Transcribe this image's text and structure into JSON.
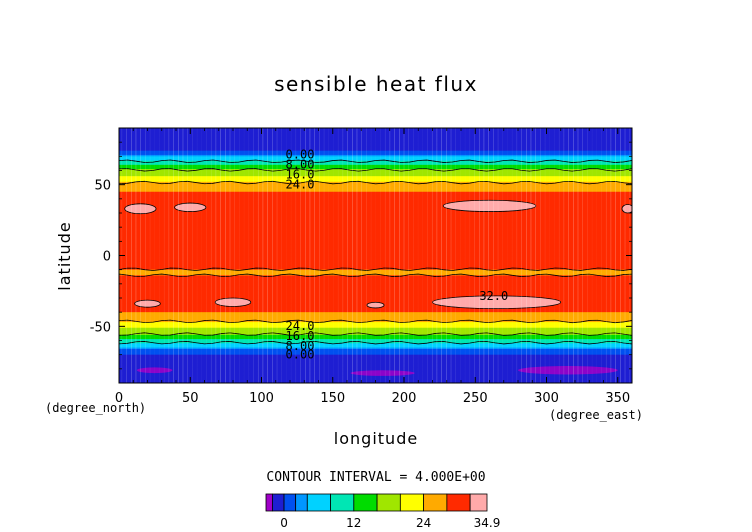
{
  "chart_data": {
    "type": "heatmap",
    "title": "sensible heat flux",
    "xlabel": "longitude",
    "ylabel": "latitude",
    "x_unit": "(degree_east)",
    "y_unit": "(degree_north)",
    "xlim": [
      0,
      360
    ],
    "ylim": [
      -90,
      90
    ],
    "x_ticks": [
      0,
      50,
      100,
      150,
      200,
      250,
      300,
      350
    ],
    "y_ticks": [
      -50,
      0,
      50
    ],
    "contour_interval_text": "CONTOUR INTERVAL = 4.000E+00",
    "contour_labels": [
      {
        "text": "0.00",
        "lon": 127,
        "lat": 72
      },
      {
        "text": "8.00",
        "lon": 127,
        "lat": 65
      },
      {
        "text": "16.0",
        "lon": 127,
        "lat": 58
      },
      {
        "text": "24.0",
        "lon": 127,
        "lat": 51
      },
      {
        "text": "24.0",
        "lon": 127,
        "lat": -49
      },
      {
        "text": "16.0",
        "lon": 127,
        "lat": -56
      },
      {
        "text": "8.00",
        "lon": 127,
        "lat": -63
      },
      {
        "text": "0.00",
        "lon": 127,
        "lat": -69
      },
      {
        "text": "32.0",
        "lon": 263,
        "lat": -28
      }
    ],
    "lat_profile": [
      {
        "lat": 90,
        "value": -2
      },
      {
        "lat": 80,
        "value": -1
      },
      {
        "lat": 74,
        "value": 0
      },
      {
        "lat": 71,
        "value": 2
      },
      {
        "lat": 68,
        "value": 6
      },
      {
        "lat": 65,
        "value": 10
      },
      {
        "lat": 62,
        "value": 14
      },
      {
        "lat": 59,
        "value": 18
      },
      {
        "lat": 56,
        "value": 20
      },
      {
        "lat": 53,
        "value": 22
      },
      {
        "lat": 50,
        "value": 26
      },
      {
        "lat": 45,
        "value": 28
      },
      {
        "lat": 40,
        "value": 30
      },
      {
        "lat": 35,
        "value": 31
      },
      {
        "lat": 30,
        "value": 30
      },
      {
        "lat": 25,
        "value": 30
      },
      {
        "lat": 20,
        "value": 28
      },
      {
        "lat": 15,
        "value": 30
      },
      {
        "lat": 5,
        "value": 30
      },
      {
        "lat": 0,
        "value": 30
      },
      {
        "lat": -5,
        "value": 30
      },
      {
        "lat": -12,
        "value": 27
      },
      {
        "lat": -18,
        "value": 30
      },
      {
        "lat": -25,
        "value": 30
      },
      {
        "lat": -30,
        "value": 31
      },
      {
        "lat": -36,
        "value": 30
      },
      {
        "lat": -40,
        "value": 28
      },
      {
        "lat": -45,
        "value": 26
      },
      {
        "lat": -48,
        "value": 22
      },
      {
        "lat": -51,
        "value": 20
      },
      {
        "lat": -54,
        "value": 18
      },
      {
        "lat": -57,
        "value": 14
      },
      {
        "lat": -60,
        "value": 10
      },
      {
        "lat": -63,
        "value": 6
      },
      {
        "lat": -66,
        "value": 2
      },
      {
        "lat": -70,
        "value": 0
      },
      {
        "lat": -80,
        "value": -1
      },
      {
        "lat": -90,
        "value": -2
      }
    ],
    "hotspots": [
      {
        "lon": 15,
        "lat": 33,
        "w": 22,
        "h": 7
      },
      {
        "lon": 50,
        "lat": 34,
        "w": 22,
        "h": 6
      },
      {
        "lon": 260,
        "lat": 35,
        "w": 65,
        "h": 8
      },
      {
        "lon": 357,
        "lat": 33,
        "w": 8,
        "h": 6
      },
      {
        "lon": 20,
        "lat": -34,
        "w": 18,
        "h": 5
      },
      {
        "lon": 80,
        "lat": -33,
        "w": 25,
        "h": 6
      },
      {
        "lon": 265,
        "lat": -33,
        "w": 90,
        "h": 9
      },
      {
        "lon": 180,
        "lat": -35,
        "w": 12,
        "h": 4
      }
    ],
    "cold_spots": [
      {
        "lon": 25,
        "lat": -81,
        "w": 25,
        "h": 4
      },
      {
        "lon": 185,
        "lat": -83,
        "w": 45,
        "h": 4
      },
      {
        "lon": 315,
        "lat": -81,
        "w": 70,
        "h": 6
      }
    ],
    "colorbar": {
      "min": -3.1,
      "max": 34.9,
      "tick_labels": [
        "0",
        "12",
        "24",
        "34.9"
      ],
      "tick_values": [
        0,
        12,
        24,
        34.9
      ],
      "levels": [
        -3.1,
        -2,
        0,
        2,
        4,
        8,
        12,
        16,
        20,
        24,
        28,
        32,
        34.9
      ],
      "colors": [
        "#a000c8",
        "#1e1ed2",
        "#0050f0",
        "#0096ff",
        "#00d2ff",
        "#00e6b4",
        "#00dc00",
        "#a0e600",
        "#ffff00",
        "#ffaa00",
        "#ff2a00",
        "#ffaaaa"
      ]
    }
  }
}
